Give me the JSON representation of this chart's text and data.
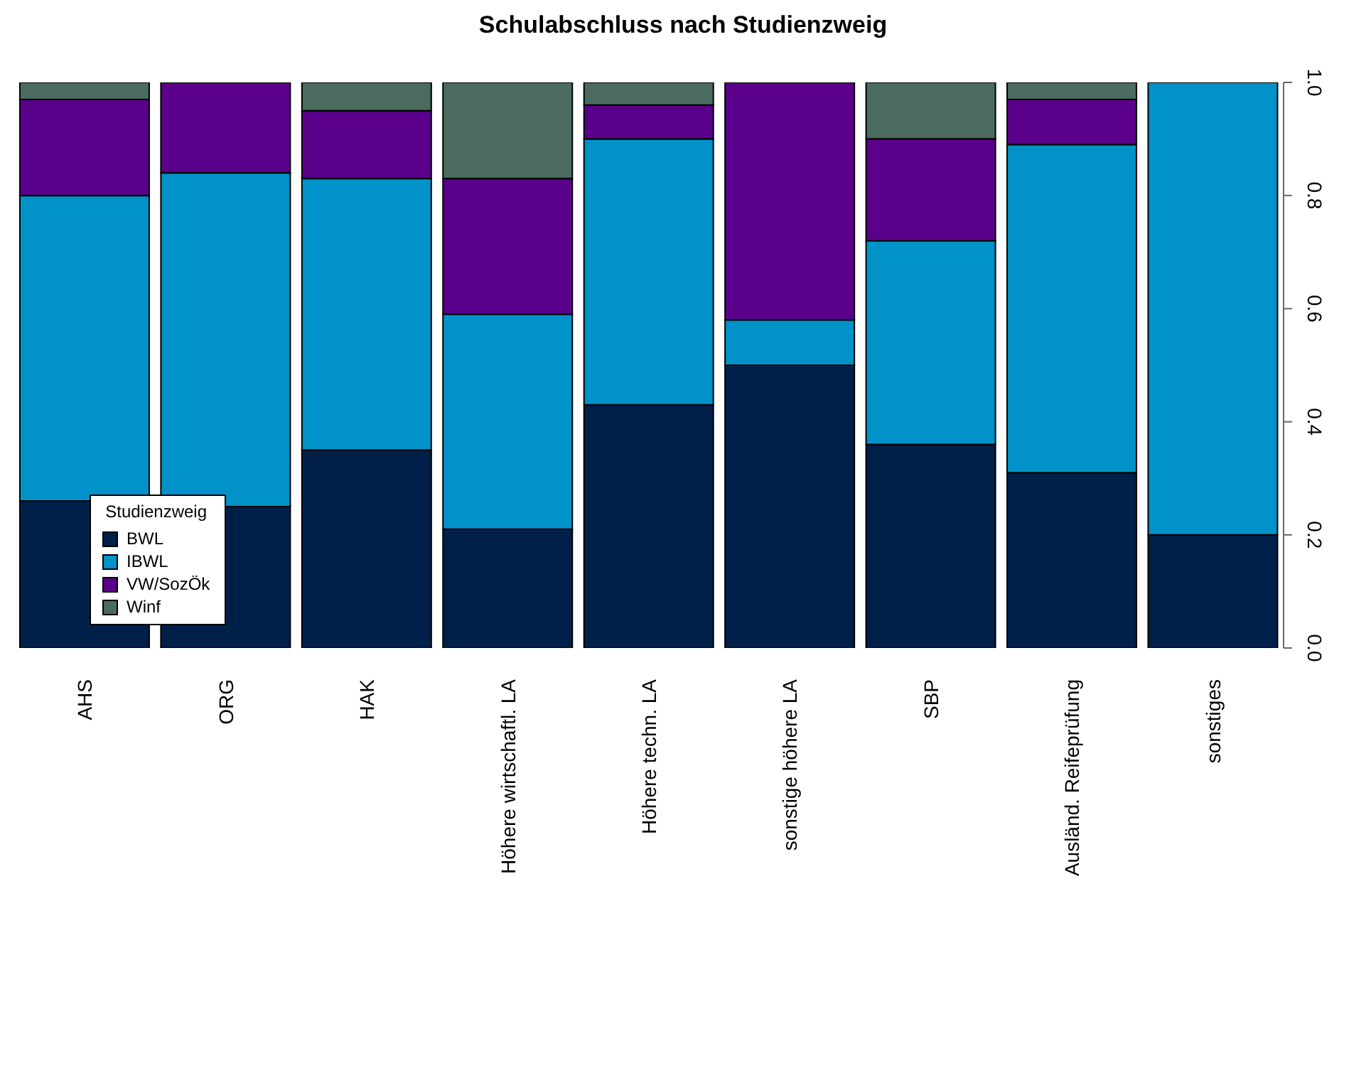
{
  "chart_data": {
    "type": "bar",
    "title": "Schulabschluss nach Studienzweig",
    "stacked": true,
    "categories": [
      "AHS",
      "ORG",
      "HAK",
      "Höhere wirtschaftl. LA",
      "Höhere techn. LA",
      "sonstige höhere LA",
      "SBP",
      "Ausländ. Reifeprüfung",
      "sonstiges"
    ],
    "series": [
      {
        "name": "BWL",
        "color": "#00204a",
        "values": [
          0.26,
          0.25,
          0.35,
          0.21,
          0.43,
          0.5,
          0.36,
          0.31,
          0.2
        ]
      },
      {
        "name": "IBWL",
        "color": "#0092c8",
        "values": [
          0.54,
          0.59,
          0.48,
          0.38,
          0.47,
          0.08,
          0.36,
          0.58,
          0.8
        ]
      },
      {
        "name": "VW/SozÖk",
        "color": "#5a008a",
        "values": [
          0.17,
          0.16,
          0.12,
          0.24,
          0.06,
          0.42,
          0.18,
          0.08,
          0
        ]
      },
      {
        "name": "Winf",
        "color": "#4a6b5e",
        "values": [
          0.03,
          0,
          0.05,
          0.17,
          0.04,
          0,
          0.1,
          0.03,
          0
        ]
      }
    ],
    "legend_title": "Studienzweig",
    "legend": "bottom left",
    "grid": false,
    "ylim": [
      0,
      1
    ],
    "yticks": [
      {
        "value": 0,
        "label": "0.0"
      },
      {
        "value": 0.2,
        "label": "0.2"
      },
      {
        "value": 0.4,
        "label": "0.4"
      },
      {
        "value": 0.6,
        "label": "0.6"
      },
      {
        "value": 0.8,
        "label": "0.8"
      },
      {
        "value": 1,
        "label": "1.0"
      }
    ]
  }
}
